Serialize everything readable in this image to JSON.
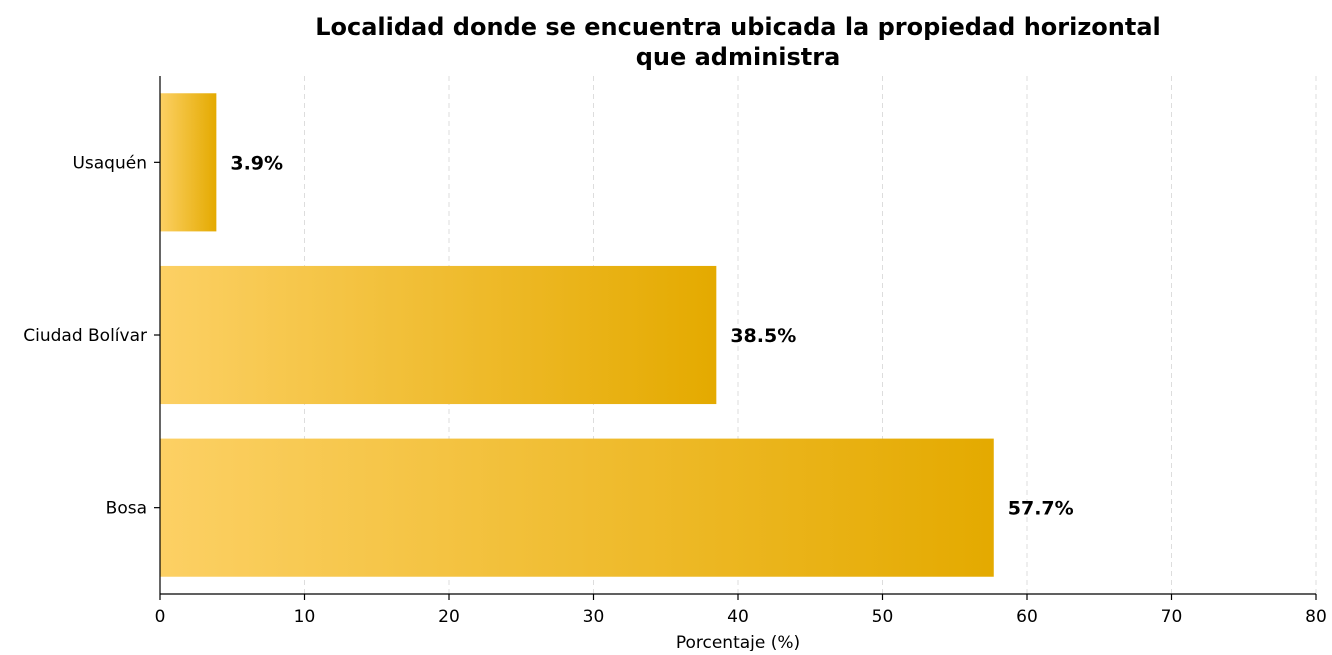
{
  "chart_data": {
    "type": "bar",
    "orientation": "horizontal",
    "title_line1": "Localidad donde se encuentra ubicada la propiedad horizontal",
    "title_line2": "que administra",
    "xlabel": "Porcentaje (%)",
    "ylabel": "",
    "categories": [
      "Usaquén",
      "Ciudad Bolívar",
      "Bosa"
    ],
    "values": [
      3.9,
      38.5,
      57.7
    ],
    "data_labels": [
      "3.9%",
      "38.5%",
      "57.7%"
    ],
    "xlim": [
      0,
      80
    ],
    "xticks": [
      0,
      10,
      20,
      30,
      40,
      50,
      60,
      70,
      80
    ],
    "grid": "x-dashed",
    "legend": "none",
    "colors": {
      "bar_light": "#fcd064",
      "bar_dark": "#e4aa00",
      "grid": "#dddddd",
      "axis": "#000000"
    }
  }
}
